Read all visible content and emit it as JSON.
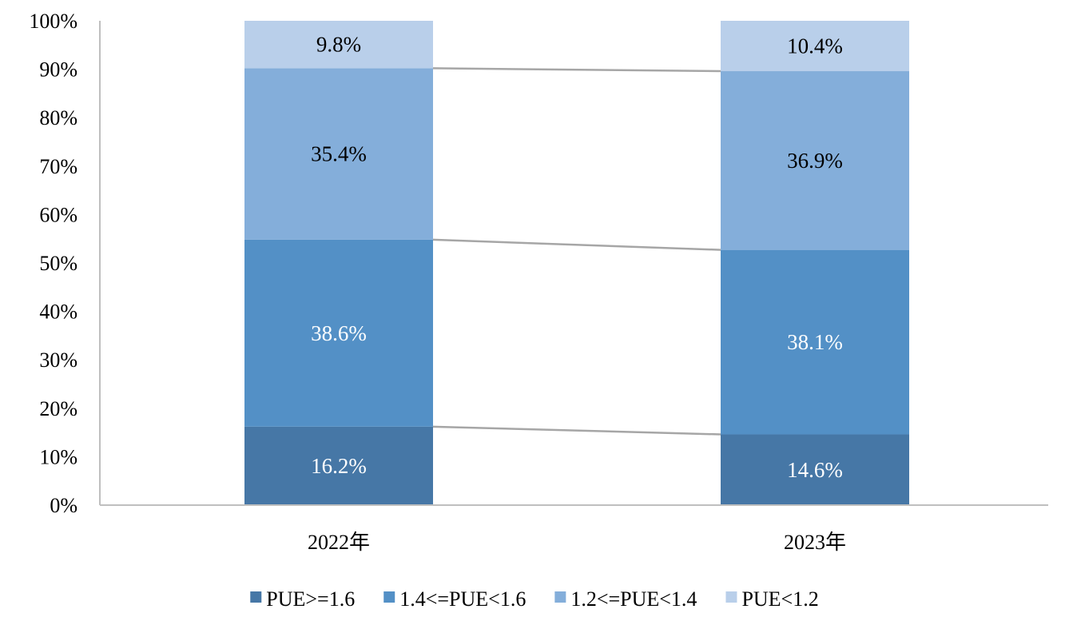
{
  "chart_data": {
    "type": "bar",
    "stacked": true,
    "normalized_percent": true,
    "categories": [
      "2022年",
      "2023年"
    ],
    "series": [
      {
        "name": "PUE>=1.6",
        "values": [
          16.2,
          14.6
        ],
        "labels": [
          "16.2%",
          "14.6%"
        ],
        "color": "#4677A6",
        "label_color": "#ffffff"
      },
      {
        "name": "1.4<=PUE<1.6",
        "values": [
          38.6,
          38.1
        ],
        "labels": [
          "38.6%",
          "38.1%"
        ],
        "color": "#5390C6",
        "label_color": "#ffffff"
      },
      {
        "name": "1.2<=PUE<1.4",
        "values": [
          35.4,
          36.9
        ],
        "labels": [
          "35.4%",
          "36.9%"
        ],
        "color": "#84AEDA",
        "label_color": "#000000"
      },
      {
        "name": "PUE<1.2",
        "values": [
          9.8,
          10.4
        ],
        "labels": [
          "9.8%",
          "10.4%"
        ],
        "color": "#B9CFEA",
        "label_color": "#000000"
      }
    ],
    "y_ticks": [
      "0%",
      "10%",
      "20%",
      "30%",
      "40%",
      "50%",
      "60%",
      "70%",
      "80%",
      "90%",
      "100%"
    ],
    "ylim": [
      0,
      100
    ],
    "series_lines": true,
    "series_line_color": "#A6A6A6",
    "axis_color": "#BFBFBF",
    "legend_position": "bottom",
    "grid": false
  }
}
